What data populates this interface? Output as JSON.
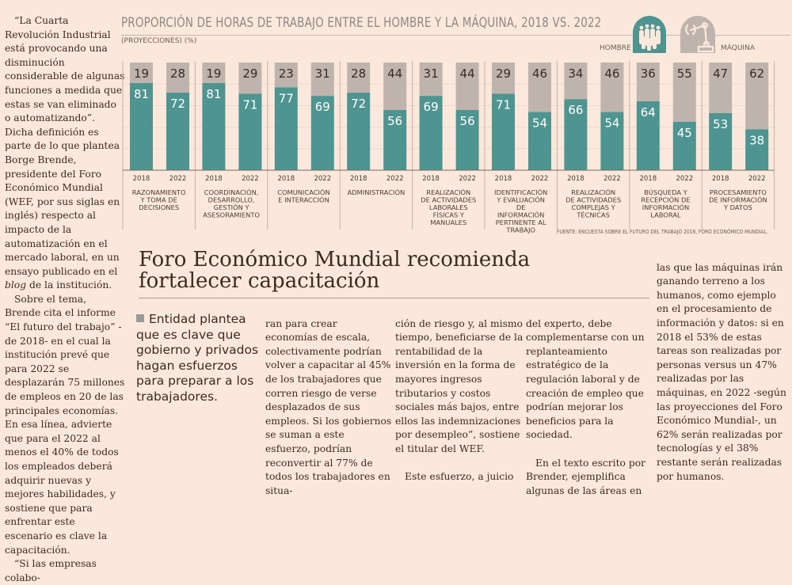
{
  "article": {
    "left_column": [
      "“La Cuarta Revolución Industrial está provocando una disminución considerable de algunas funciones a medida que estas se van eliminado o automatizando”. Dicha definición es parte de lo que plantea Borge Brende, presidente del Foro Económico Mundial (WEF, por sus siglas en inglés) respecto al impacto de la automatización en el mercado laboral, en un ensayo publicado en el blog de la institución.",
      "Sobre el tema, Brende cita el informe “El futuro del trabajo” -de 2018- en el cual la institución prevé que para 2022 se desplazarán 75 millones de empleos en 20 de las principales economías. En esa línea, advierte que para el 2022 al menos el 40% de todos los empleados deberá adquirir nuevas y mejores habilidades, y sostiene que para enfrentar este escenario es clave la capacitación.",
      "“Si las empresas colabo-"
    ],
    "headline": "Foro Económico Mundial recomienda fortalecer capacitación",
    "bullet": "Entidad plantea que es clave que gobierno y privados hagan esfuerzos para preparar a los trabajadores.",
    "col2": "ran para crear economías de escala, colectivamente podrían volver a capacitar al 45% de los trabajadores que corren riesgo de verse desplazados de sus empleos. Si los gobiernos se suman a este esfuerzo, podrían reconvertir al 77% de todos los trabajadores en situa-",
    "col3a": "ción de riesgo y, al mismo tiempo, beneficiarse de la rentabilidad de la inversión en la forma de mayores ingresos tributarios y costos sociales más bajos, entre ellos las indemnizaciones por desempleo”, sostiene el titular del WEF.",
    "col3b": "Este esfuerzo, a juicio",
    "col4a": "del experto, debe complementarse con un replanteamiento estratégico de la regulación laboral y de creación de empleo que podrían mejorar los beneficios para la sociedad.",
    "col4b": "En el texto escrito por Brender, ejemplifica algunas de las áreas en",
    "col5": "las que las máquinas irán ganando terreno a los humanos, como ejemplo en el procesamiento de información y datos: si en 2018 el 53% de estas tareas son realizadas por personas versus un 47% realizadas por las máquinas, en 2022 -según las proyecciones del Foro Económico Mundial-, un 62% serán realizadas por tecnologías y el 38% restante serán realizadas por humanos."
  },
  "legend": {
    "hombre_label": "HOMBRE",
    "maquina_label": "MÁQUINA",
    "hombre_icon": "people-icon",
    "maquina_icon": "robot-arm-icon"
  },
  "colors": {
    "hombre": "#4e9490",
    "maquina": "#bfb4ad",
    "background": "#fbe8dc"
  },
  "chart_data": {
    "type": "bar",
    "stacked": true,
    "title": "PROPORCIÓN DE HORAS DE TRABAJO ENTRE EL HOMBRE Y LA MÁQUINA, 2018 VS. 2022",
    "subtitle": "(PROYECCIONES) (%)",
    "source": "FUENTE: ENCUESTA SOBRE EL FUTURO DEL TRABAJO 2018, FORO ECONÓMICO MUNDIAL.",
    "ylim": [
      0,
      100
    ],
    "legend_position": "top-right",
    "years": [
      "2018",
      "2022"
    ],
    "categories": [
      "RAZONAMIENTO Y TOMA DE DECISIONES",
      "COORDINACIÓN, DESARROLLO, GESTIÓN Y ASESORAMIENTO",
      "COMUNICACIÓN E INTERACCIÓN",
      "ADMINISTRACIÓN",
      "REALIZACIÓN DE ACTIVIDADES LABORALES FÍSICAS Y MANUALES",
      "IDENTIFICACIÓN Y EVALUACIÓN DE INFORMACIÓN PERTINENTE AL TRABAJO",
      "REALIZACIÓN DE ACTIVIDADES COMPLEJAS Y TÉCNICAS",
      "BÚSQUEDA Y RECEPCIÓN DE INFORMACIÓN LABORAL",
      "PROCESAMIENTO DE INFORMACIÓN Y DATOS"
    ],
    "category_lines": [
      [
        "RAZONAMIENTO",
        "Y TOMA DE",
        "DECISIONES"
      ],
      [
        "COORDINACIÓN,",
        "DESARROLLO,",
        "GESTIÓN Y",
        "ASESORAMIENTO"
      ],
      [
        "COMUNICACIÓN",
        "E INTERACCIÓN"
      ],
      [
        "ADMINISTRACIÓN"
      ],
      [
        "REALIZACIÓN",
        "DE ACTIVIDADES",
        "LABORALES",
        "FÍSICAS Y",
        "MANUALES"
      ],
      [
        "IDENTIFICACIÓN",
        "Y EVALUACIÓN",
        "DE",
        "INFORMACIÓN",
        "PERTINENTE AL",
        "TRABAJO"
      ],
      [
        "REALIZACIÓN",
        "DE ACTIVIDADES",
        "COMPLEJAS Y",
        "TÉCNICAS"
      ],
      [
        "BÚSQUEDA Y",
        "RECEPCIÓN DE",
        "INFORMACIÓN",
        "LABORAL"
      ],
      [
        "PROCESAMIENTO",
        "DE INFORMACIÓN",
        "Y DATOS"
      ]
    ],
    "series": [
      {
        "name": "HOMBRE",
        "values_2018": [
          81,
          81,
          77,
          72,
          69,
          71,
          66,
          64,
          53
        ],
        "values_2022": [
          72,
          71,
          69,
          56,
          56,
          54,
          54,
          45,
          38
        ]
      },
      {
        "name": "MÁQUINA",
        "values_2018": [
          19,
          19,
          23,
          28,
          31,
          29,
          34,
          36,
          47
        ],
        "values_2022": [
          28,
          29,
          31,
          44,
          44,
          46,
          46,
          55,
          62
        ]
      }
    ]
  }
}
